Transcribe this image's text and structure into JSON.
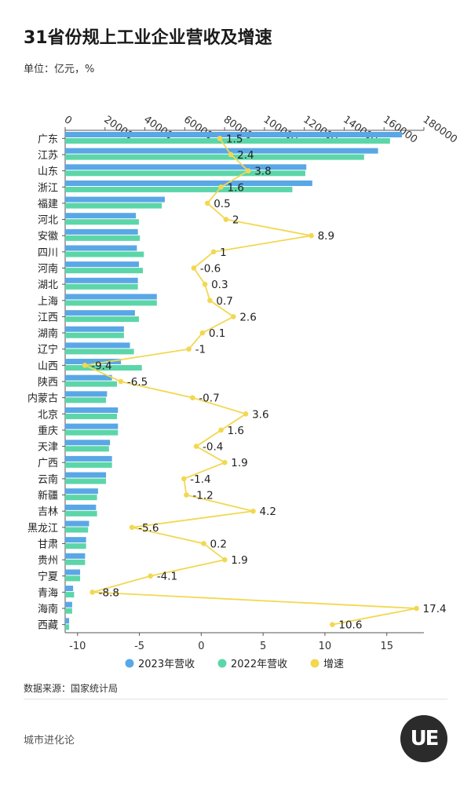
{
  "title": "31省份规上工业企业营收及增速",
  "unit": "单位：亿元，%",
  "source": "数据来源：国家统计局",
  "brand": "城市进化论",
  "logo_text": "UE",
  "colors": {
    "rev2023": "#5aa7e6",
    "rev2022": "#5cd6a8",
    "growth": "#f2d852",
    "axis": "#555555",
    "grid": "#dddddd"
  },
  "chart_data": {
    "type": "bar",
    "orientation": "horizontal",
    "categories": [
      "广东",
      "江苏",
      "山东",
      "浙江",
      "福建",
      "河北",
      "安徽",
      "四川",
      "河南",
      "湖北",
      "上海",
      "江西",
      "湖南",
      "辽宁",
      "山西",
      "陕西",
      "内蒙古",
      "北京",
      "重庆",
      "天津",
      "广西",
      "云南",
      "新疆",
      "吉林",
      "黑龙江",
      "甘肃",
      "贵州",
      "宁夏",
      "青海",
      "海南",
      "西藏"
    ],
    "series": [
      {
        "name": "2023年营收",
        "axis": "top",
        "values": [
          169000,
          157000,
          121000,
          124000,
          50000,
          35500,
          36500,
          36000,
          37000,
          36500,
          46000,
          35000,
          29500,
          32500,
          28000,
          23500,
          21000,
          26500,
          26500,
          22500,
          23500,
          20500,
          16500,
          15500,
          12000,
          10500,
          10000,
          7500,
          4000,
          3500,
          2000
        ]
      },
      {
        "name": "2022年营收",
        "axis": "top",
        "values": [
          163000,
          150000,
          120500,
          114000,
          48500,
          37000,
          37500,
          39500,
          39000,
          36500,
          46000,
          37000,
          29500,
          34500,
          38500,
          26000,
          20500,
          26000,
          26500,
          22000,
          23500,
          20500,
          16000,
          16000,
          11500,
          10500,
          10000,
          7500,
          4500,
          3500,
          2000
        ]
      },
      {
        "name": "增速",
        "axis": "bottom",
        "type": "line",
        "values": [
          1.5,
          2.4,
          3.8,
          1.6,
          0.5,
          2,
          8.9,
          1,
          -0.6,
          0.3,
          0.7,
          2.6,
          0.1,
          -1,
          -9.4,
          -6.5,
          -0.7,
          3.6,
          1.6,
          -0.4,
          1.9,
          -1.4,
          -1.2,
          4.2,
          -5.6,
          0.2,
          1.9,
          -4.1,
          -8.8,
          17.4,
          10.6
        ]
      }
    ],
    "labels": [
      "1.5",
      "2.4",
      "3.8",
      "1.6",
      "0.5",
      "2",
      "8.9",
      "1",
      "-0.6",
      "0.3",
      "0.7",
      "2.6",
      "0.1",
      "-1",
      "-9.4",
      "-6.5",
      "-0.7",
      "3.6",
      "1.6",
      "-0.4",
      "1.9",
      "-1.4",
      "-1.2",
      "4.2",
      "-5.6",
      "0.2",
      "1.9",
      "-4.1",
      "-8.8",
      "17.4",
      "10.6"
    ],
    "top_axis": {
      "range": [
        0,
        180000
      ],
      "ticks": [
        "0",
        "20000",
        "40000",
        "60000",
        "80000",
        "100000",
        "120000",
        "140000",
        "160000",
        "180000"
      ]
    },
    "bottom_axis": {
      "range": [
        -11,
        18
      ],
      "ticks": [
        "-10",
        "-5",
        "0",
        "5",
        "10",
        "15"
      ]
    },
    "legend": {
      "placement": "bottom"
    }
  }
}
